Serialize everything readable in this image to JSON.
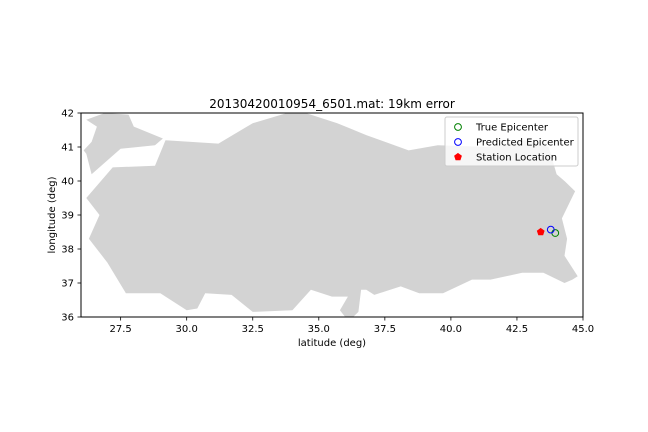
{
  "chart_data": {
    "type": "scatter",
    "title": "20130420010954_6501.mat: 19km error",
    "xlabel": "latitude (deg)",
    "ylabel": "longitude (deg)",
    "xlim": [
      26,
      45
    ],
    "ylim": [
      36,
      42
    ],
    "xticks": [
      "27.5",
      "30.0",
      "32.5",
      "35.0",
      "37.5",
      "40.0",
      "42.5",
      "45.0"
    ],
    "xtick_values": [
      27.5,
      30.0,
      32.5,
      35.0,
      37.5,
      40.0,
      42.5,
      45.0
    ],
    "yticks": [
      "36",
      "37",
      "38",
      "39",
      "40",
      "41",
      "42"
    ],
    "ytick_values": [
      36,
      37,
      38,
      39,
      40,
      41,
      42
    ],
    "grid": false,
    "legend_position": "top-right",
    "background_map": {
      "name": "Turkey outline",
      "color": "#d3d3d3",
      "main_outline": [
        [
          29.2,
          41.2
        ],
        [
          31.2,
          41.1
        ],
        [
          32.5,
          41.7
        ],
        [
          33.8,
          42.0
        ],
        [
          34.5,
          42.0
        ],
        [
          35.7,
          41.7
        ],
        [
          36.8,
          41.35
        ],
        [
          38.4,
          40.9
        ],
        [
          39.5,
          41.05
        ],
        [
          41.5,
          41.0
        ],
        [
          42.8,
          41.2
        ],
        [
          43.7,
          41.0
        ],
        [
          44.0,
          40.2
        ],
        [
          44.3,
          40.0
        ],
        [
          44.7,
          39.7
        ],
        [
          44.2,
          38.9
        ],
        [
          44.4,
          38.3
        ],
        [
          44.3,
          37.8
        ],
        [
          44.8,
          37.2
        ],
        [
          44.6,
          37.1
        ],
        [
          44.3,
          37.0
        ],
        [
          43.5,
          37.3
        ],
        [
          42.7,
          37.3
        ],
        [
          41.5,
          37.1
        ],
        [
          40.8,
          37.1
        ],
        [
          39.7,
          36.7
        ],
        [
          38.8,
          36.7
        ],
        [
          38.1,
          36.9
        ],
        [
          37.1,
          36.65
        ],
        [
          36.8,
          36.8
        ],
        [
          36.6,
          36.8
        ],
        [
          36.5,
          36.15
        ],
        [
          36.3,
          36.0
        ],
        [
          36.0,
          36.0
        ],
        [
          35.8,
          36.2
        ],
        [
          36.1,
          36.6
        ],
        [
          35.5,
          36.6
        ],
        [
          34.7,
          36.8
        ],
        [
          34.0,
          36.2
        ],
        [
          32.5,
          36.15
        ],
        [
          31.7,
          36.65
        ],
        [
          30.7,
          36.7
        ],
        [
          30.4,
          36.25
        ],
        [
          30.0,
          36.2
        ],
        [
          29.0,
          36.7
        ],
        [
          27.7,
          36.7
        ],
        [
          27.0,
          37.6
        ],
        [
          26.3,
          38.3
        ],
        [
          26.7,
          39.0
        ],
        [
          26.2,
          39.5
        ],
        [
          27.2,
          40.4
        ],
        [
          28.8,
          40.45
        ]
      ],
      "thrace_outline": [
        [
          26.2,
          40.8
        ],
        [
          26.4,
          40.2
        ],
        [
          27.5,
          40.95
        ],
        [
          28.8,
          41.05
        ],
        [
          29.1,
          41.25
        ],
        [
          28.0,
          41.6
        ],
        [
          27.8,
          41.95
        ],
        [
          26.9,
          42.0
        ],
        [
          26.2,
          41.8
        ],
        [
          26.6,
          41.6
        ],
        [
          26.4,
          41.15
        ],
        [
          26.1,
          40.9
        ]
      ]
    },
    "series": [
      {
        "name": "True Epicenter",
        "marker": "circle",
        "fill": "none",
        "color": "#008000",
        "x": [
          43.95
        ],
        "y": [
          38.47
        ]
      },
      {
        "name": "Predicted Epicenter",
        "marker": "circle",
        "fill": "none",
        "color": "#0000ff",
        "x": [
          43.78
        ],
        "y": [
          38.57
        ]
      },
      {
        "name": "Station Location",
        "marker": "pentagon",
        "fill": "#ff0000",
        "color": "#ff0000",
        "x": [
          43.4
        ],
        "y": [
          38.5
        ]
      }
    ]
  }
}
